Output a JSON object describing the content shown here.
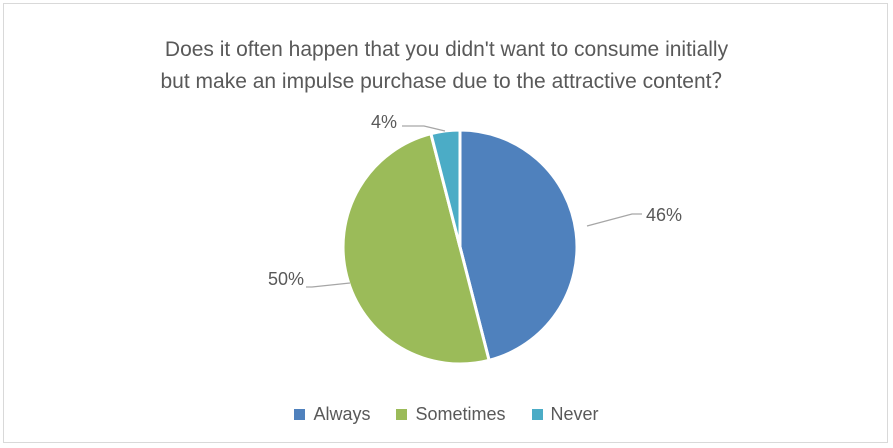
{
  "chart_data": {
    "type": "pie",
    "title_lines": [
      "Does it often happen that you didn't want to consume initially",
      "but make an impulse purchase due to the attractive content？"
    ],
    "categories": [
      "Always",
      "Sometimes",
      "Never"
    ],
    "values": [
      46,
      50,
      4
    ],
    "data_labels": [
      "46%",
      "50%",
      "4%"
    ],
    "colors": [
      "#4f81bd",
      "#9bbb59",
      "#4bacc6"
    ],
    "legend_position": "bottom"
  }
}
